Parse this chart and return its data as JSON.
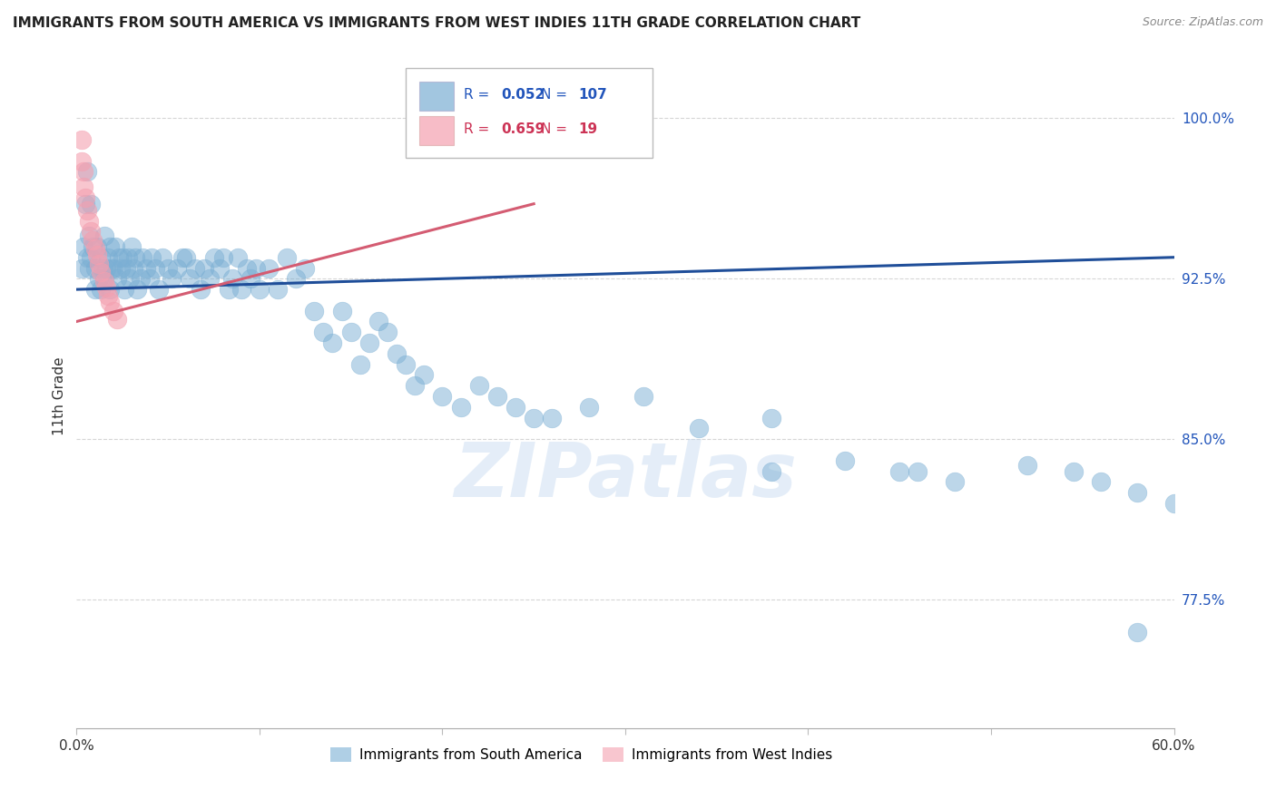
{
  "title": "IMMIGRANTS FROM SOUTH AMERICA VS IMMIGRANTS FROM WEST INDIES 11TH GRADE CORRELATION CHART",
  "source": "Source: ZipAtlas.com",
  "ylabel": "11th Grade",
  "xlim": [
    0.0,
    0.6
  ],
  "ylim": [
    0.715,
    1.025
  ],
  "ytick_vals": [
    1.0,
    0.925,
    0.85,
    0.775
  ],
  "ytick_labels": [
    "100.0%",
    "92.5%",
    "85.0%",
    "77.5%"
  ],
  "xtick_vals": [
    0.0,
    0.1,
    0.2,
    0.3,
    0.4,
    0.5,
    0.6
  ],
  "xtick_labels": [
    "0.0%",
    "",
    "",
    "",
    "",
    "",
    "60.0%"
  ],
  "legend_blue_label": "Immigrants from South America",
  "legend_pink_label": "Immigrants from West Indies",
  "R_blue": 0.052,
  "N_blue": 107,
  "R_pink": 0.659,
  "N_pink": 19,
  "blue_color": "#7bafd4",
  "pink_color": "#f4a0b0",
  "blue_line_color": "#1f4e99",
  "pink_line_color": "#d45c72",
  "watermark": "ZIPatlas",
  "blue_scatter_x": [
    0.003,
    0.004,
    0.005,
    0.006,
    0.006,
    0.007,
    0.007,
    0.008,
    0.008,
    0.009,
    0.01,
    0.01,
    0.011,
    0.012,
    0.013,
    0.013,
    0.014,
    0.015,
    0.015,
    0.016,
    0.017,
    0.018,
    0.018,
    0.019,
    0.02,
    0.021,
    0.022,
    0.023,
    0.024,
    0.025,
    0.026,
    0.027,
    0.028,
    0.029,
    0.03,
    0.031,
    0.032,
    0.033,
    0.035,
    0.036,
    0.038,
    0.04,
    0.041,
    0.043,
    0.045,
    0.047,
    0.05,
    0.052,
    0.055,
    0.058,
    0.06,
    0.062,
    0.065,
    0.068,
    0.07,
    0.073,
    0.075,
    0.078,
    0.08,
    0.083,
    0.085,
    0.088,
    0.09,
    0.093,
    0.095,
    0.098,
    0.1,
    0.105,
    0.11,
    0.115,
    0.12,
    0.125,
    0.13,
    0.135,
    0.14,
    0.145,
    0.15,
    0.155,
    0.16,
    0.165,
    0.17,
    0.175,
    0.18,
    0.185,
    0.19,
    0.2,
    0.21,
    0.22,
    0.23,
    0.24,
    0.25,
    0.26,
    0.28,
    0.31,
    0.34,
    0.38,
    0.42,
    0.45,
    0.48,
    0.52,
    0.545,
    0.56,
    0.58,
    0.6,
    0.38,
    0.46,
    0.58
  ],
  "blue_scatter_y": [
    0.93,
    0.94,
    0.96,
    0.935,
    0.975,
    0.945,
    0.93,
    0.935,
    0.96,
    0.94,
    0.93,
    0.92,
    0.94,
    0.925,
    0.935,
    0.92,
    0.93,
    0.945,
    0.925,
    0.93,
    0.935,
    0.94,
    0.92,
    0.93,
    0.93,
    0.94,
    0.925,
    0.935,
    0.93,
    0.935,
    0.92,
    0.93,
    0.935,
    0.925,
    0.94,
    0.93,
    0.935,
    0.92,
    0.925,
    0.935,
    0.93,
    0.925,
    0.935,
    0.93,
    0.92,
    0.935,
    0.93,
    0.925,
    0.93,
    0.935,
    0.935,
    0.925,
    0.93,
    0.92,
    0.93,
    0.925,
    0.935,
    0.93,
    0.935,
    0.92,
    0.925,
    0.935,
    0.92,
    0.93,
    0.925,
    0.93,
    0.92,
    0.93,
    0.92,
    0.935,
    0.925,
    0.93,
    0.91,
    0.9,
    0.895,
    0.91,
    0.9,
    0.885,
    0.895,
    0.905,
    0.9,
    0.89,
    0.885,
    0.875,
    0.88,
    0.87,
    0.865,
    0.875,
    0.87,
    0.865,
    0.86,
    0.86,
    0.865,
    0.87,
    0.855,
    0.86,
    0.84,
    0.835,
    0.83,
    0.838,
    0.835,
    0.83,
    0.825,
    0.82,
    0.835,
    0.835,
    0.76
  ],
  "pink_scatter_x": [
    0.003,
    0.003,
    0.004,
    0.004,
    0.005,
    0.006,
    0.007,
    0.008,
    0.009,
    0.01,
    0.011,
    0.012,
    0.013,
    0.015,
    0.016,
    0.017,
    0.018,
    0.02,
    0.022
  ],
  "pink_scatter_y": [
    0.99,
    0.98,
    0.975,
    0.968,
    0.963,
    0.957,
    0.952,
    0.947,
    0.943,
    0.939,
    0.936,
    0.932,
    0.928,
    0.924,
    0.921,
    0.917,
    0.914,
    0.91,
    0.906
  ],
  "blue_trendline_x": [
    0.0,
    0.6
  ],
  "blue_trendline_y": [
    0.92,
    0.935
  ],
  "pink_trendline_x": [
    0.0,
    0.25
  ],
  "pink_trendline_y": [
    0.905,
    0.96
  ]
}
